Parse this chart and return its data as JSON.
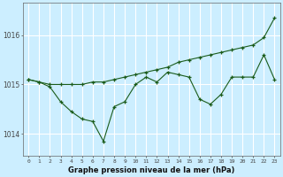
{
  "title": "Graphe pression niveau de la mer (hPa)",
  "bg_color": "#cceeff",
  "grid_color": "#ffffff",
  "line_color": "#1a5c1a",
  "x_labels": [
    "0",
    "1",
    "2",
    "3",
    "4",
    "5",
    "6",
    "7",
    "8",
    "9",
    "10",
    "11",
    "12",
    "13",
    "14",
    "15",
    "16",
    "17",
    "18",
    "19",
    "20",
    "21",
    "22",
    "23"
  ],
  "y_ticks": [
    1014,
    1015,
    1016
  ],
  "ylim": [
    1013.55,
    1016.65
  ],
  "xlim": [
    -0.5,
    23.5
  ],
  "series1": [
    1015.1,
    1015.05,
    1014.95,
    1014.65,
    1014.45,
    1014.3,
    1014.25,
    1013.85,
    1014.55,
    1014.65,
    1015.0,
    1015.15,
    1015.05,
    1015.25,
    1015.2,
    1015.15,
    1014.7,
    1014.6,
    1014.8,
    1015.15,
    1015.15,
    1015.15,
    1015.6,
    1015.1
  ],
  "series2": [
    1015.1,
    1015.05,
    1015.0,
    1015.0,
    1015.0,
    1015.0,
    1015.05,
    1015.05,
    1015.1,
    1015.15,
    1015.2,
    1015.25,
    1015.3,
    1015.35,
    1015.45,
    1015.5,
    1015.55,
    1015.6,
    1015.65,
    1015.7,
    1015.75,
    1015.8,
    1015.95,
    1016.35
  ]
}
